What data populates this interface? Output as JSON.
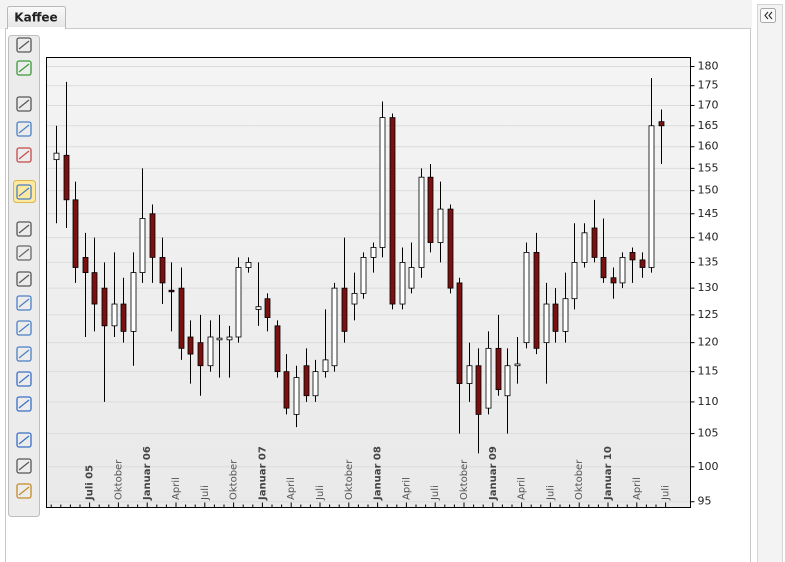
{
  "tab": {
    "title": "Kaffee"
  },
  "chart_data": {
    "type": "candlestick",
    "categories": [
      null,
      null,
      null,
      null,
      "Juli 05",
      null,
      null,
      "Oktober",
      null,
      null,
      "Januar 06",
      null,
      null,
      "April",
      null,
      null,
      "Juli",
      null,
      null,
      "Oktober",
      null,
      null,
      "Januar 07",
      null,
      null,
      "April",
      null,
      null,
      "Juli",
      null,
      null,
      "Oktober",
      null,
      null,
      "Januar 08",
      null,
      null,
      "April",
      null,
      null,
      "Juli",
      null,
      null,
      "Oktober",
      null,
      null,
      "Januar 09",
      null,
      null,
      "April",
      null,
      null,
      "Juli",
      null,
      null,
      "Oktober",
      null,
      null,
      "Januar 10",
      null,
      null,
      "April",
      null,
      null,
      "Juli"
    ],
    "open": [
      157,
      158,
      148,
      136,
      133,
      130,
      123,
      127,
      122,
      133,
      145,
      136,
      129.6,
      130,
      121,
      120,
      116,
      120.5,
      120.5,
      121,
      134,
      126,
      128,
      123,
      115,
      108,
      116,
      111,
      115,
      116,
      130,
      127,
      129,
      136,
      138,
      167,
      127,
      130,
      134,
      153,
      139,
      146,
      131,
      113,
      116,
      109,
      119,
      111,
      116,
      120,
      137,
      120,
      127,
      122,
      128,
      135,
      142,
      136,
      132,
      131,
      137,
      135.5,
      134,
      166,
      null
    ],
    "high": [
      165,
      176,
      152,
      141,
      140,
      135,
      137,
      132,
      137,
      155,
      147,
      140,
      135,
      134,
      124,
      125,
      124,
      125,
      123,
      136,
      136,
      135,
      129,
      124,
      118,
      116,
      119,
      117,
      126,
      131,
      140,
      133,
      137,
      139,
      171,
      168,
      138,
      139,
      155,
      156,
      152,
      147,
      132,
      120,
      119,
      122,
      125,
      119,
      121,
      139,
      141,
      131,
      130,
      133,
      143,
      143,
      148,
      144,
      134,
      137,
      138,
      137,
      177,
      169,
      null
    ],
    "low": [
      143,
      142,
      131,
      121,
      122,
      110,
      121,
      120,
      116,
      131,
      131,
      127,
      122,
      117,
      113,
      111,
      115,
      114,
      114,
      120,
      133,
      123,
      122,
      114,
      108,
      106,
      110,
      110,
      114,
      115,
      120,
      124,
      128,
      133,
      136,
      126,
      126,
      129,
      132,
      137,
      135,
      129,
      105,
      110,
      102,
      108,
      111,
      105,
      113,
      119,
      118,
      113,
      120,
      120,
      126,
      134,
      135,
      131,
      128,
      130,
      131,
      132,
      133,
      156,
      null
    ],
    "close": [
      158.5,
      148,
      134,
      133,
      127,
      123,
      127,
      122,
      133,
      144,
      136,
      131,
      129.3,
      119,
      118,
      116,
      121,
      120.8,
      121,
      134,
      135,
      126.5,
      124.5,
      115,
      109,
      114,
      111,
      115,
      117,
      130,
      122,
      129,
      136,
      138,
      167,
      127,
      135,
      134,
      153,
      139,
      146,
      130,
      113,
      116,
      108,
      119,
      112,
      116,
      116.3,
      137,
      119,
      127,
      122,
      128,
      135,
      141,
      136,
      132,
      131,
      136,
      135.5,
      134,
      165,
      165,
      null
    ],
    "up_color": "#ffffff",
    "down_color": "#7a1010",
    "wick_color": "#000000",
    "log_scale": true,
    "grid": true,
    "ylim": [
      94.2,
      182.4
    ],
    "yticks": [
      95,
      100,
      105,
      110,
      115,
      120,
      125,
      130,
      135,
      140,
      145,
      150,
      155,
      160,
      165,
      170,
      175,
      180
    ]
  }
}
